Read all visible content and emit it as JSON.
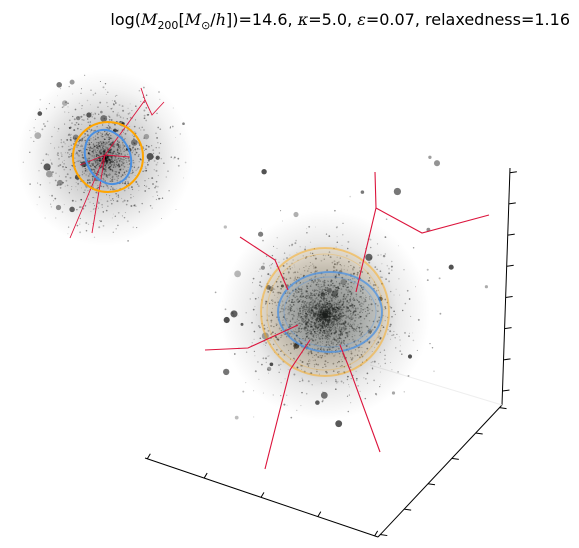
{
  "chart_data": {
    "type": "scatter",
    "title": {
      "prefix": "log(",
      "M": "M",
      "sub": "200",
      "unit_open": "[",
      "Msun": "M",
      "sun_sub": "⊙",
      "h_part": "/",
      "h": "h",
      "unit_close": "])=",
      "mass_value": "14.6",
      "kappa_sym": "κ",
      "kappa_value": "=5.0",
      "eps_sym": "ε",
      "eps_value": "=0.07",
      "relaxedness": "relaxedness=1.16"
    },
    "parameters": {
      "log_M200": 14.6,
      "kappa": 5.0,
      "epsilon": 0.07,
      "relaxedness": 1.16
    },
    "xlabel": "",
    "ylabel": "",
    "zlabel": "",
    "grid": false,
    "colors": {
      "particles": "#000000",
      "filaments": "#dc143c",
      "outer_sphere": "#ffa500",
      "inner_ellipsoid": "#4a90e2"
    }
  }
}
